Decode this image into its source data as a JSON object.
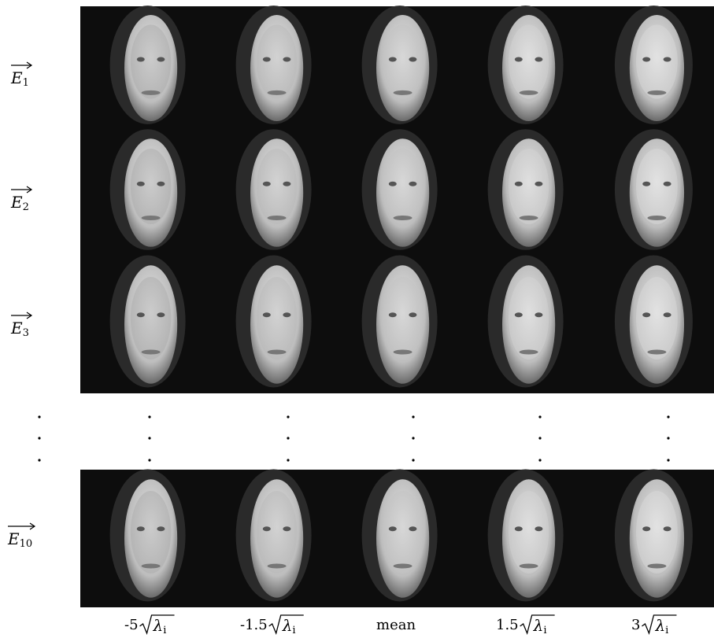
{
  "row_labels": [
    {
      "letter": "E",
      "subscript": "1"
    },
    {
      "letter": "E",
      "subscript": "2"
    },
    {
      "letter": "E",
      "subscript": "3"
    },
    {
      "letter": "E",
      "subscript": "10"
    }
  ],
  "column_labels": [
    {
      "coefficient": "-5",
      "radicand": "λ",
      "subscript": "i"
    },
    {
      "coefficient": "-1.5",
      "radicand": "λ",
      "subscript": "i"
    },
    {
      "text": "mean"
    },
    {
      "coefficient": "1.5",
      "radicand": "λ",
      "subscript": "i"
    },
    {
      "coefficient": "3",
      "radicand": "λ",
      "subscript": "i"
    }
  ]
}
